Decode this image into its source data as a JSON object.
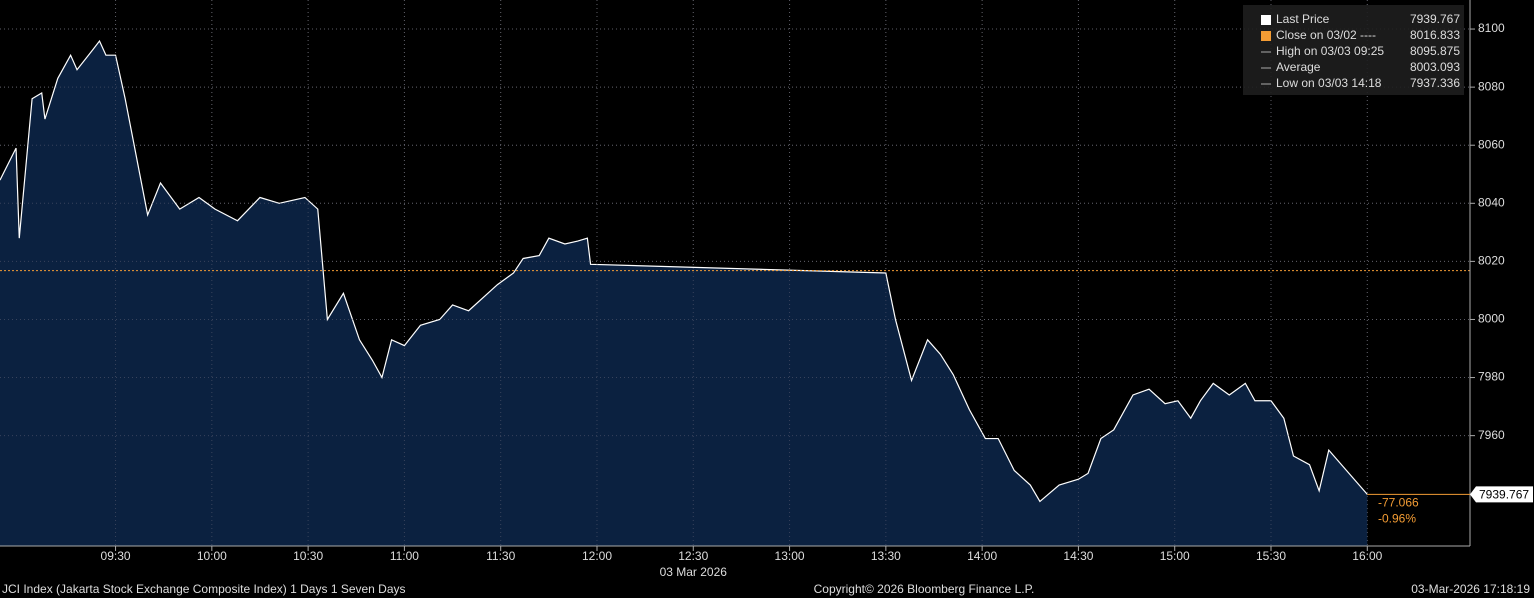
{
  "chart_data": {
    "type": "area",
    "x": [
      "08:54",
      "08:59",
      "09:00",
      "09:04",
      "09:07",
      "09:08",
      "09:12",
      "09:16",
      "09:18",
      "09:23",
      "09:25",
      "09:27",
      "09:30",
      "09:33",
      "09:40",
      "09:44",
      "09:50",
      "09:56",
      "10:01",
      "10:08",
      "10:15",
      "10:21",
      "10:29",
      "10:33",
      "10:36",
      "10:41",
      "10:46",
      "10:50",
      "10:53",
      "10:56",
      "11:00",
      "11:05",
      "11:11",
      "11:15",
      "11:20",
      "11:26",
      "11:29",
      "11:34",
      "11:37",
      "11:42",
      "11:45",
      "11:50",
      "11:54",
      "11:57",
      "11:58",
      "13:30",
      "13:33",
      "13:38",
      "13:43",
      "13:47",
      "13:51",
      "13:56",
      "14:01",
      "14:05",
      "14:10",
      "14:15",
      "14:18",
      "14:24",
      "14:30",
      "14:33",
      "14:37",
      "14:41",
      "14:47",
      "14:52",
      "14:57",
      "15:01",
      "15:05",
      "15:08",
      "15:12",
      "15:17",
      "15:22",
      "15:25",
      "15:30",
      "15:34",
      "15:37",
      "15:42",
      "15:45",
      "15:48",
      "16:00"
    ],
    "series": [
      {
        "name": "Last Price",
        "color": "#ffffff",
        "fill": "#0b2140",
        "values": [
          8048,
          8059,
          8028,
          8076,
          8078,
          8069,
          8083,
          8091,
          8086,
          8093,
          8095.875,
          8091,
          8091,
          8076,
          8036,
          8047,
          8038,
          8042,
          8038,
          8034,
          8042,
          8040,
          8042,
          8038,
          8000,
          8009,
          7993,
          7986,
          7980,
          7993,
          7991,
          7998,
          8000,
          8005,
          8003,
          8009,
          8012,
          8016,
          8021,
          8022,
          8028,
          8026,
          8027,
          8028,
          8019,
          8016,
          8000,
          7979,
          7993,
          7988,
          7981,
          7969,
          7959,
          7959,
          7948,
          7943,
          7937.336,
          7943,
          7945,
          7947,
          7959,
          7962,
          7974,
          7976,
          7971,
          7972,
          7966,
          7972,
          7978,
          7974,
          7978,
          7972,
          7972,
          7966,
          7953,
          7950,
          7941,
          7955,
          7939.767
        ]
      }
    ],
    "reference_line": {
      "value": 8016.833,
      "color": "#f39c34"
    },
    "xlim": [
      "08:54",
      "16:32"
    ],
    "xticks": [
      "09:30",
      "10:00",
      "10:30",
      "11:00",
      "11:30",
      "12:00",
      "12:30",
      "13:00",
      "13:30",
      "14:00",
      "14:30",
      "15:00",
      "15:30",
      "16:00"
    ],
    "date_label": "03 Mar 2026",
    "ylim": [
      7922,
      8110
    ],
    "yticks": [
      7960,
      7980,
      8000,
      8020,
      8040,
      8060,
      8080,
      8100
    ],
    "grid": true,
    "legend": [
      {
        "label": "Last Price",
        "value": "7939.767",
        "color": "#ffffff"
      },
      {
        "label": "Close on 03/02 ----",
        "value": "8016.833",
        "color": "#f39c34"
      },
      {
        "label": "High on 03/03 09:25",
        "value": "8095.875",
        "color": "#aaaaaa"
      },
      {
        "label": "Average",
        "value": "8003.093",
        "color": "#aaaaaa"
      },
      {
        "label": "Low on 03/03 14:18",
        "value": "7937.336",
        "color": "#aaaaaa"
      }
    ],
    "last_label": "7939.767",
    "change": "-77.066",
    "change_pct": "-0.96%",
    "footer": {
      "left": "JCI Index (Jakarta Stock Exchange Composite Index) 1 Days 1 Seven Days",
      "center": "Copyright© 2026 Bloomberg Finance L.P.",
      "right": "03-Mar-2026 17:18:19"
    }
  }
}
